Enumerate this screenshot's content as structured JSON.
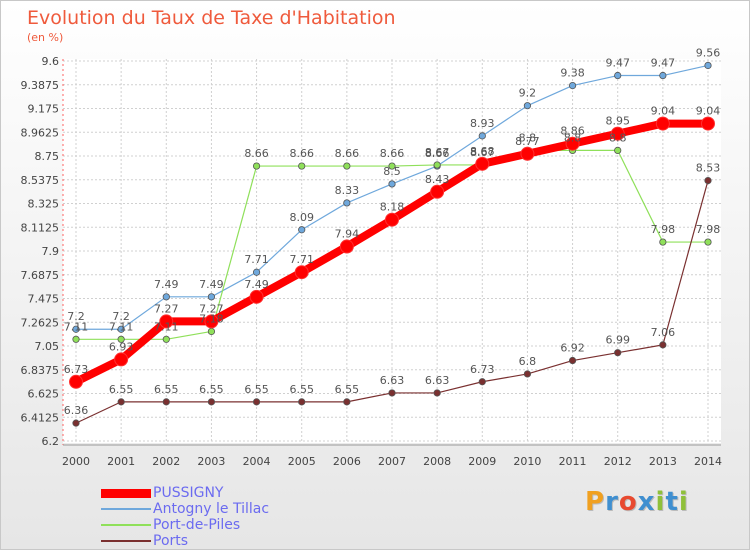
{
  "chart_data": {
    "type": "line",
    "title": "Evolution du Taux de Taxe d'Habitation",
    "subtitle": "(en %)",
    "x": [
      "2000",
      "2001",
      "2002",
      "2003",
      "2004",
      "2005",
      "2006",
      "2007",
      "2008",
      "2009",
      "2010",
      "2011",
      "2012",
      "2013",
      "2014"
    ],
    "ylim": [
      6.2,
      9.6
    ],
    "yticks": [
      "6.2",
      "6.4125",
      "6.625",
      "6.8375",
      "7.05",
      "7.2625",
      "7.475",
      "7.6875",
      "7.9",
      "8.1125",
      "8.325",
      "8.5375",
      "8.75",
      "8.9625",
      "9.175",
      "9.3875",
      "9.6"
    ],
    "grid": true,
    "legend_position": "bottom-left",
    "series": [
      {
        "name": "PUSSIGNY",
        "color": "#ff0000",
        "values": [
          6.73,
          6.93,
          7.27,
          7.27,
          7.49,
          7.71,
          7.94,
          8.18,
          8.43,
          8.68,
          8.77,
          8.86,
          8.95,
          9.04,
          9.04
        ]
      },
      {
        "name": "Antogny le Tillac",
        "color": "#6fa8dc",
        "values": [
          7.2,
          7.2,
          7.49,
          7.49,
          7.71,
          8.09,
          8.33,
          8.5,
          8.66,
          8.93,
          9.2,
          9.38,
          9.47,
          9.47,
          9.56
        ]
      },
      {
        "name": "Port-de-Piles",
        "color": "#8fe05a",
        "values": [
          7.11,
          7.11,
          7.11,
          7.18,
          8.66,
          8.66,
          8.66,
          8.66,
          8.67,
          8.67,
          8.8,
          8.8,
          8.8,
          7.98,
          7.98
        ]
      },
      {
        "name": "Ports",
        "color": "#7a3030",
        "values": [
          6.36,
          6.55,
          6.55,
          6.55,
          6.55,
          6.55,
          6.55,
          6.63,
          6.63,
          6.73,
          6.8,
          6.92,
          6.99,
          7.06,
          8.53
        ]
      }
    ]
  },
  "brand": {
    "letters": [
      "P",
      "r",
      "o",
      "x",
      "i",
      "t",
      "i"
    ]
  }
}
